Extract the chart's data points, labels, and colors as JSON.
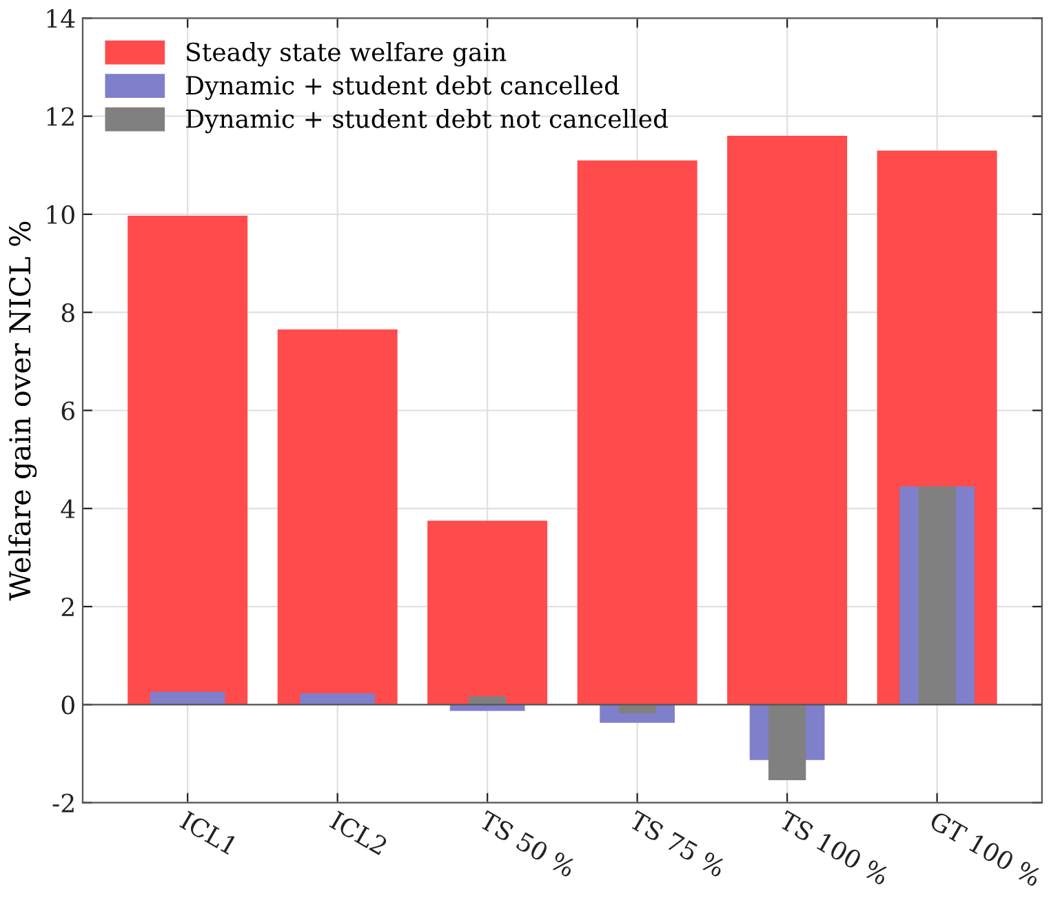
{
  "chart_data": {
    "type": "bar",
    "ylabel": "Welfare gain over NICL %",
    "categories": [
      "ICL1",
      "ICL2",
      "TS 50 %",
      "TS 75 %",
      "TS 100 %",
      "GT 100 %"
    ],
    "series": [
      {
        "name": "Steady state welfare gain",
        "color": "#ff4b4b",
        "values": [
          9.97,
          7.65,
          3.75,
          11.1,
          11.6,
          11.3
        ]
      },
      {
        "name": "Dynamic + student debt cancelled",
        "color": "#7f7fcc",
        "values": [
          0.26,
          0.23,
          -0.13,
          -0.37,
          -1.13,
          4.45
        ]
      },
      {
        "name": "Dynamic + student debt not cancelled",
        "color": "#808080",
        "values": [
          0,
          0,
          0.17,
          -0.18,
          -1.54,
          4.45
        ]
      }
    ],
    "ylim": [
      -2,
      14
    ],
    "yticks": [
      -2,
      0,
      2,
      4,
      6,
      8,
      10,
      12,
      14
    ],
    "grid": true,
    "legend": "top left"
  }
}
